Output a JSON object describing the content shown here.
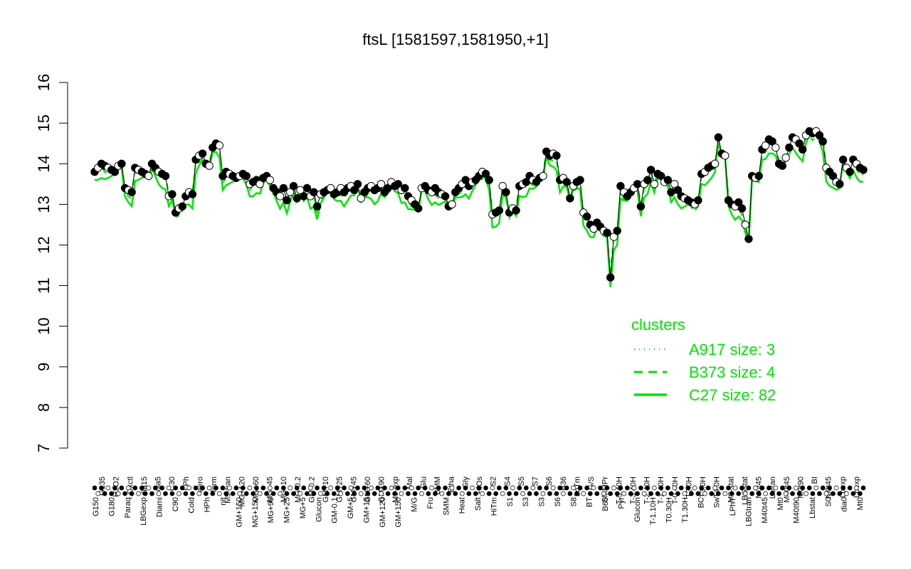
{
  "chart_data": {
    "type": "line",
    "title": "ftsL [1581597,1581950,+1]",
    "xlabel": "",
    "ylabel": "",
    "ylim": [
      7,
      16
    ],
    "yticks": [
      7,
      8,
      9,
      10,
      11,
      12,
      13,
      14,
      15,
      16
    ],
    "grid": false,
    "legend": {
      "placement": "right-middle",
      "title": "clusters",
      "entries": [
        {
          "label": "A917 size: 3",
          "style": "dotted"
        },
        {
          "label": "B373 size: 4",
          "style": "dashed"
        },
        {
          "label": "C27 size: 82",
          "style": "solid"
        }
      ]
    },
    "colors": {
      "line": "#00e400",
      "point_fill_dark": "#000000",
      "point_fill_light": "#ffffff",
      "legend": "#00e400"
    },
    "x_labels_upper": [
      "G135",
      "H2O2",
      "Oxctl",
      "dia15",
      "dia5",
      "C30",
      "LPh",
      "aero",
      "ferm",
      "M9-tran",
      "MG+120",
      "MG+60",
      "MG+45",
      "MG+10",
      "MG-0.2",
      "GM-0.2",
      "GM+10",
      "GM+25",
      "GM+45",
      "GM+60",
      "GM+90",
      "M9-exp",
      "Mal",
      "Glu",
      "BMM",
      "Etha",
      "Gly",
      "HiOs",
      "S2",
      "S4",
      "S5",
      "S7",
      "S6",
      "B36",
      "LoTm",
      "G/S",
      "SMMPr",
      "T-5.40H",
      "T-3.40H",
      "T-2.40H",
      "T-1.40H",
      "T-0.40H",
      "T2.0H",
      "T3.0H",
      "T4.0H",
      "M9-stat",
      "LBGstat",
      "M0t45",
      "Lbtran",
      "M40t45",
      "M0t90",
      "BI",
      "M0t45",
      "Lbexp",
      "Lbexp"
    ],
    "x_labels_lower": [
      "G150",
      "G180",
      "Paraq",
      "LBGexp",
      "Diami",
      "C90",
      "Cold",
      "HPh",
      "nit",
      "GM+150",
      "MG+150",
      "MG+90",
      "MG+25",
      "MG+5",
      "Glucon",
      "GM-0.1",
      "GM+5",
      "GM+15",
      "GM+120",
      "GM+150",
      "M/G",
      "Fru",
      "SMM",
      "Heat",
      "Salt",
      "HiTm",
      "S1",
      "S3",
      "S3",
      "S6",
      "S8",
      "BT",
      "B60",
      "Pyr",
      "Glucon",
      "T-1.10H",
      "T0.30H",
      "T1.30H",
      "BC",
      "Sw",
      "LPhT",
      "LBGtran",
      "M40t45",
      "Mt0",
      "M40t90",
      "Lbstat",
      "S0",
      "dia0",
      "Mt0"
    ],
    "series": [
      {
        "values": [
          13.8,
          13.9,
          14.0,
          13.95,
          13.9,
          13.85,
          13.8,
          13.95,
          14.0,
          13.4,
          13.35,
          13.3,
          13.9,
          13.85,
          13.8,
          13.75,
          13.7,
          14.0,
          13.9,
          13.8,
          13.75,
          13.7,
          13.2,
          13.25,
          12.8,
          12.9,
          12.95,
          13.2,
          13.3,
          13.25,
          14.1,
          14.2,
          14.25,
          14.0,
          13.95,
          14.4,
          14.5,
          14.45,
          13.7,
          13.8,
          13.75,
          13.7,
          13.65,
          13.7,
          13.75,
          13.7,
          13.5,
          13.55,
          13.6,
          13.5,
          13.65,
          13.7,
          13.6,
          13.4,
          13.3,
          13.2,
          13.4,
          13.1,
          13.3,
          13.45,
          13.15,
          13.35,
          13.2,
          13.4,
          13.2,
          13.3,
          12.95,
          13.25,
          13.3,
          13.35,
          13.4,
          13.25,
          13.3,
          13.4,
          13.3,
          13.4,
          13.45,
          13.35,
          13.5,
          13.15,
          13.3,
          13.4,
          13.45,
          13.35,
          13.4,
          13.5,
          13.3,
          13.4,
          13.55,
          13.45,
          13.5,
          13.35,
          13.4,
          13.2,
          13.1,
          13.0,
          12.9,
          13.4,
          13.45,
          13.35,
          13.3,
          13.4,
          13.3,
          13.25,
          13.2,
          12.95,
          13.0,
          13.3,
          13.4,
          13.5,
          13.6,
          13.45,
          13.55,
          13.6,
          13.7,
          13.8,
          13.75,
          13.6,
          12.75,
          12.8,
          12.85,
          13.45,
          13.3,
          12.8,
          12.9,
          12.85,
          13.45,
          13.5,
          13.55,
          13.7,
          13.6,
          13.55,
          13.65,
          13.7,
          14.3,
          14.2,
          14.25,
          14.2,
          13.6,
          13.65,
          13.55,
          13.15,
          13.45,
          13.55,
          13.6,
          12.8,
          12.7,
          12.5,
          12.4,
          12.55,
          12.45,
          12.35,
          12.3,
          11.2,
          12.2,
          12.35,
          13.45,
          13.3,
          13.2,
          13.3,
          13.4,
          13.5,
          12.95,
          13.5,
          13.6,
          13.85,
          13.5,
          13.75,
          13.7,
          13.55,
          13.6,
          13.3,
          13.5,
          13.35,
          13.2,
          13.15,
          13.1,
          13.05,
          13.0,
          13.1,
          13.75,
          13.8,
          13.9,
          13.95,
          14.0,
          14.65,
          14.25,
          14.2,
          13.1,
          13.0,
          12.95,
          13.05,
          12.9,
          12.5,
          12.15,
          13.7,
          13.65,
          13.7,
          14.35,
          14.45,
          14.6,
          14.55,
          14.4,
          14.0,
          13.95,
          14.15,
          14.4,
          14.65,
          14.6,
          14.5,
          14.35,
          14.7,
          14.8,
          14.75,
          14.8,
          14.7,
          14.55,
          13.9,
          13.8,
          13.7,
          13.55,
          13.5,
          14.1,
          13.9,
          13.8,
          14.1,
          14.0,
          13.9,
          13.85
        ]
      }
    ]
  }
}
